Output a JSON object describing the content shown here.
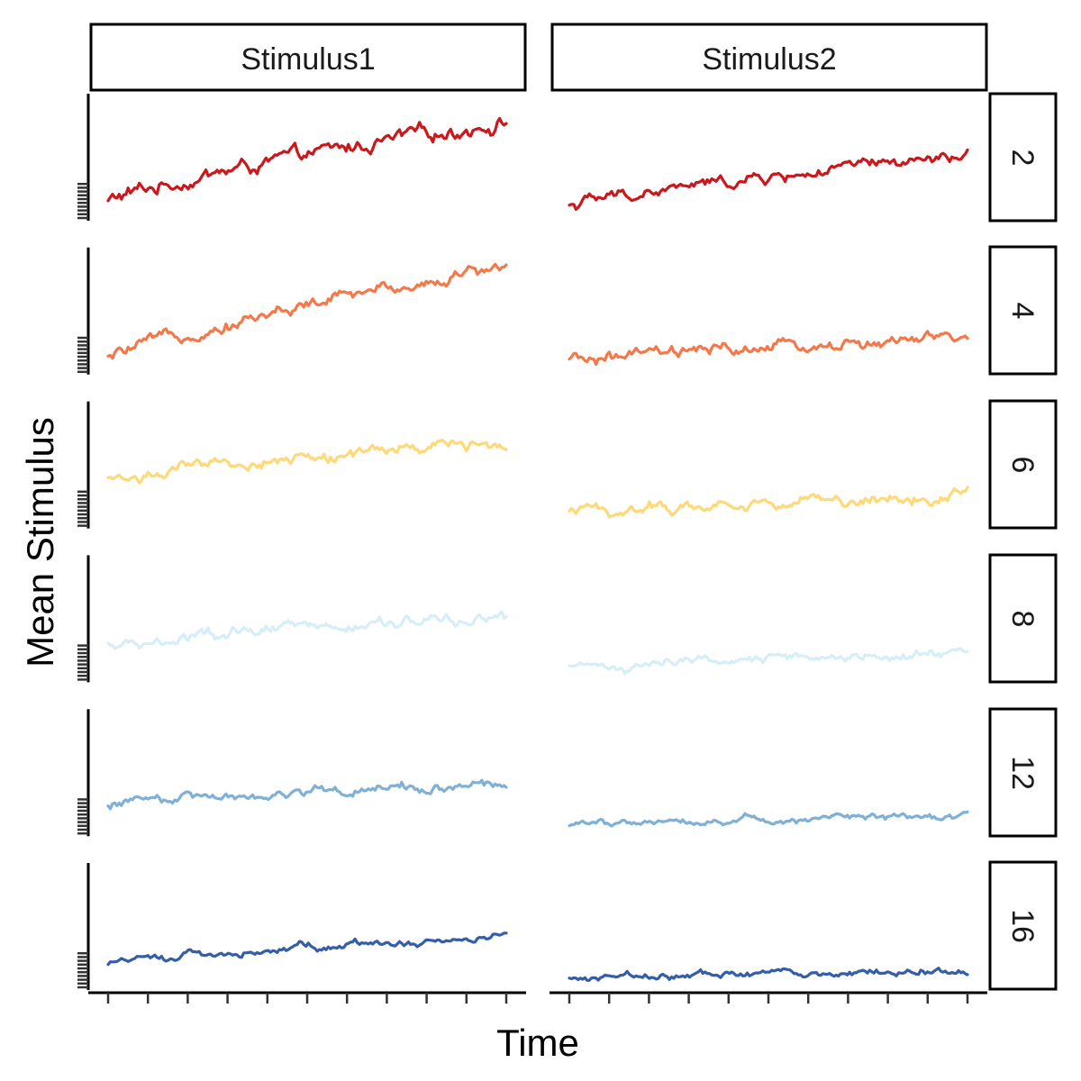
{
  "chart_data": {
    "type": "line",
    "facets": {
      "columns": [
        "Stimulus1",
        "Stimulus2"
      ],
      "rows": [
        "2",
        "4",
        "6",
        "8",
        "12",
        "16"
      ]
    },
    "xlabel": "Time",
    "ylabel": "Mean Stimulus",
    "x_ticks": 11,
    "y_ticks_per_panel": 10,
    "colors": {
      "2": "#cb181d",
      "4": "#f4784a",
      "6": "#fdd97a",
      "8": "#d6eef7",
      "12": "#7fb0d6",
      "16": "#355ea8"
    },
    "panels": [
      {
        "column": "Stimulus1",
        "row": "2",
        "start": 0.15,
        "end": 0.78,
        "noise": 0.06
      },
      {
        "column": "Stimulus2",
        "row": "2",
        "start": 0.12,
        "end": 0.5,
        "noise": 0.05
      },
      {
        "column": "Stimulus1",
        "row": "4",
        "start": 0.12,
        "end": 0.86,
        "noise": 0.05
      },
      {
        "column": "Stimulus2",
        "row": "4",
        "start": 0.1,
        "end": 0.28,
        "noise": 0.05
      },
      {
        "column": "Stimulus1",
        "row": "6",
        "start": 0.38,
        "end": 0.68,
        "noise": 0.05
      },
      {
        "column": "Stimulus2",
        "row": "6",
        "start": 0.12,
        "end": 0.26,
        "noise": 0.05
      },
      {
        "column": "Stimulus1",
        "row": "8",
        "start": 0.27,
        "end": 0.52,
        "noise": 0.05
      },
      {
        "column": "Stimulus2",
        "row": "8",
        "start": 0.1,
        "end": 0.24,
        "noise": 0.04
      },
      {
        "column": "Stimulus1",
        "row": "12",
        "start": 0.26,
        "end": 0.42,
        "noise": 0.04
      },
      {
        "column": "Stimulus2",
        "row": "12",
        "start": 0.1,
        "end": 0.17,
        "noise": 0.03
      },
      {
        "column": "Stimulus1",
        "row": "16",
        "start": 0.22,
        "end": 0.42,
        "noise": 0.03
      },
      {
        "column": "Stimulus2",
        "row": "16",
        "start": 0.1,
        "end": 0.15,
        "noise": 0.03
      }
    ]
  }
}
